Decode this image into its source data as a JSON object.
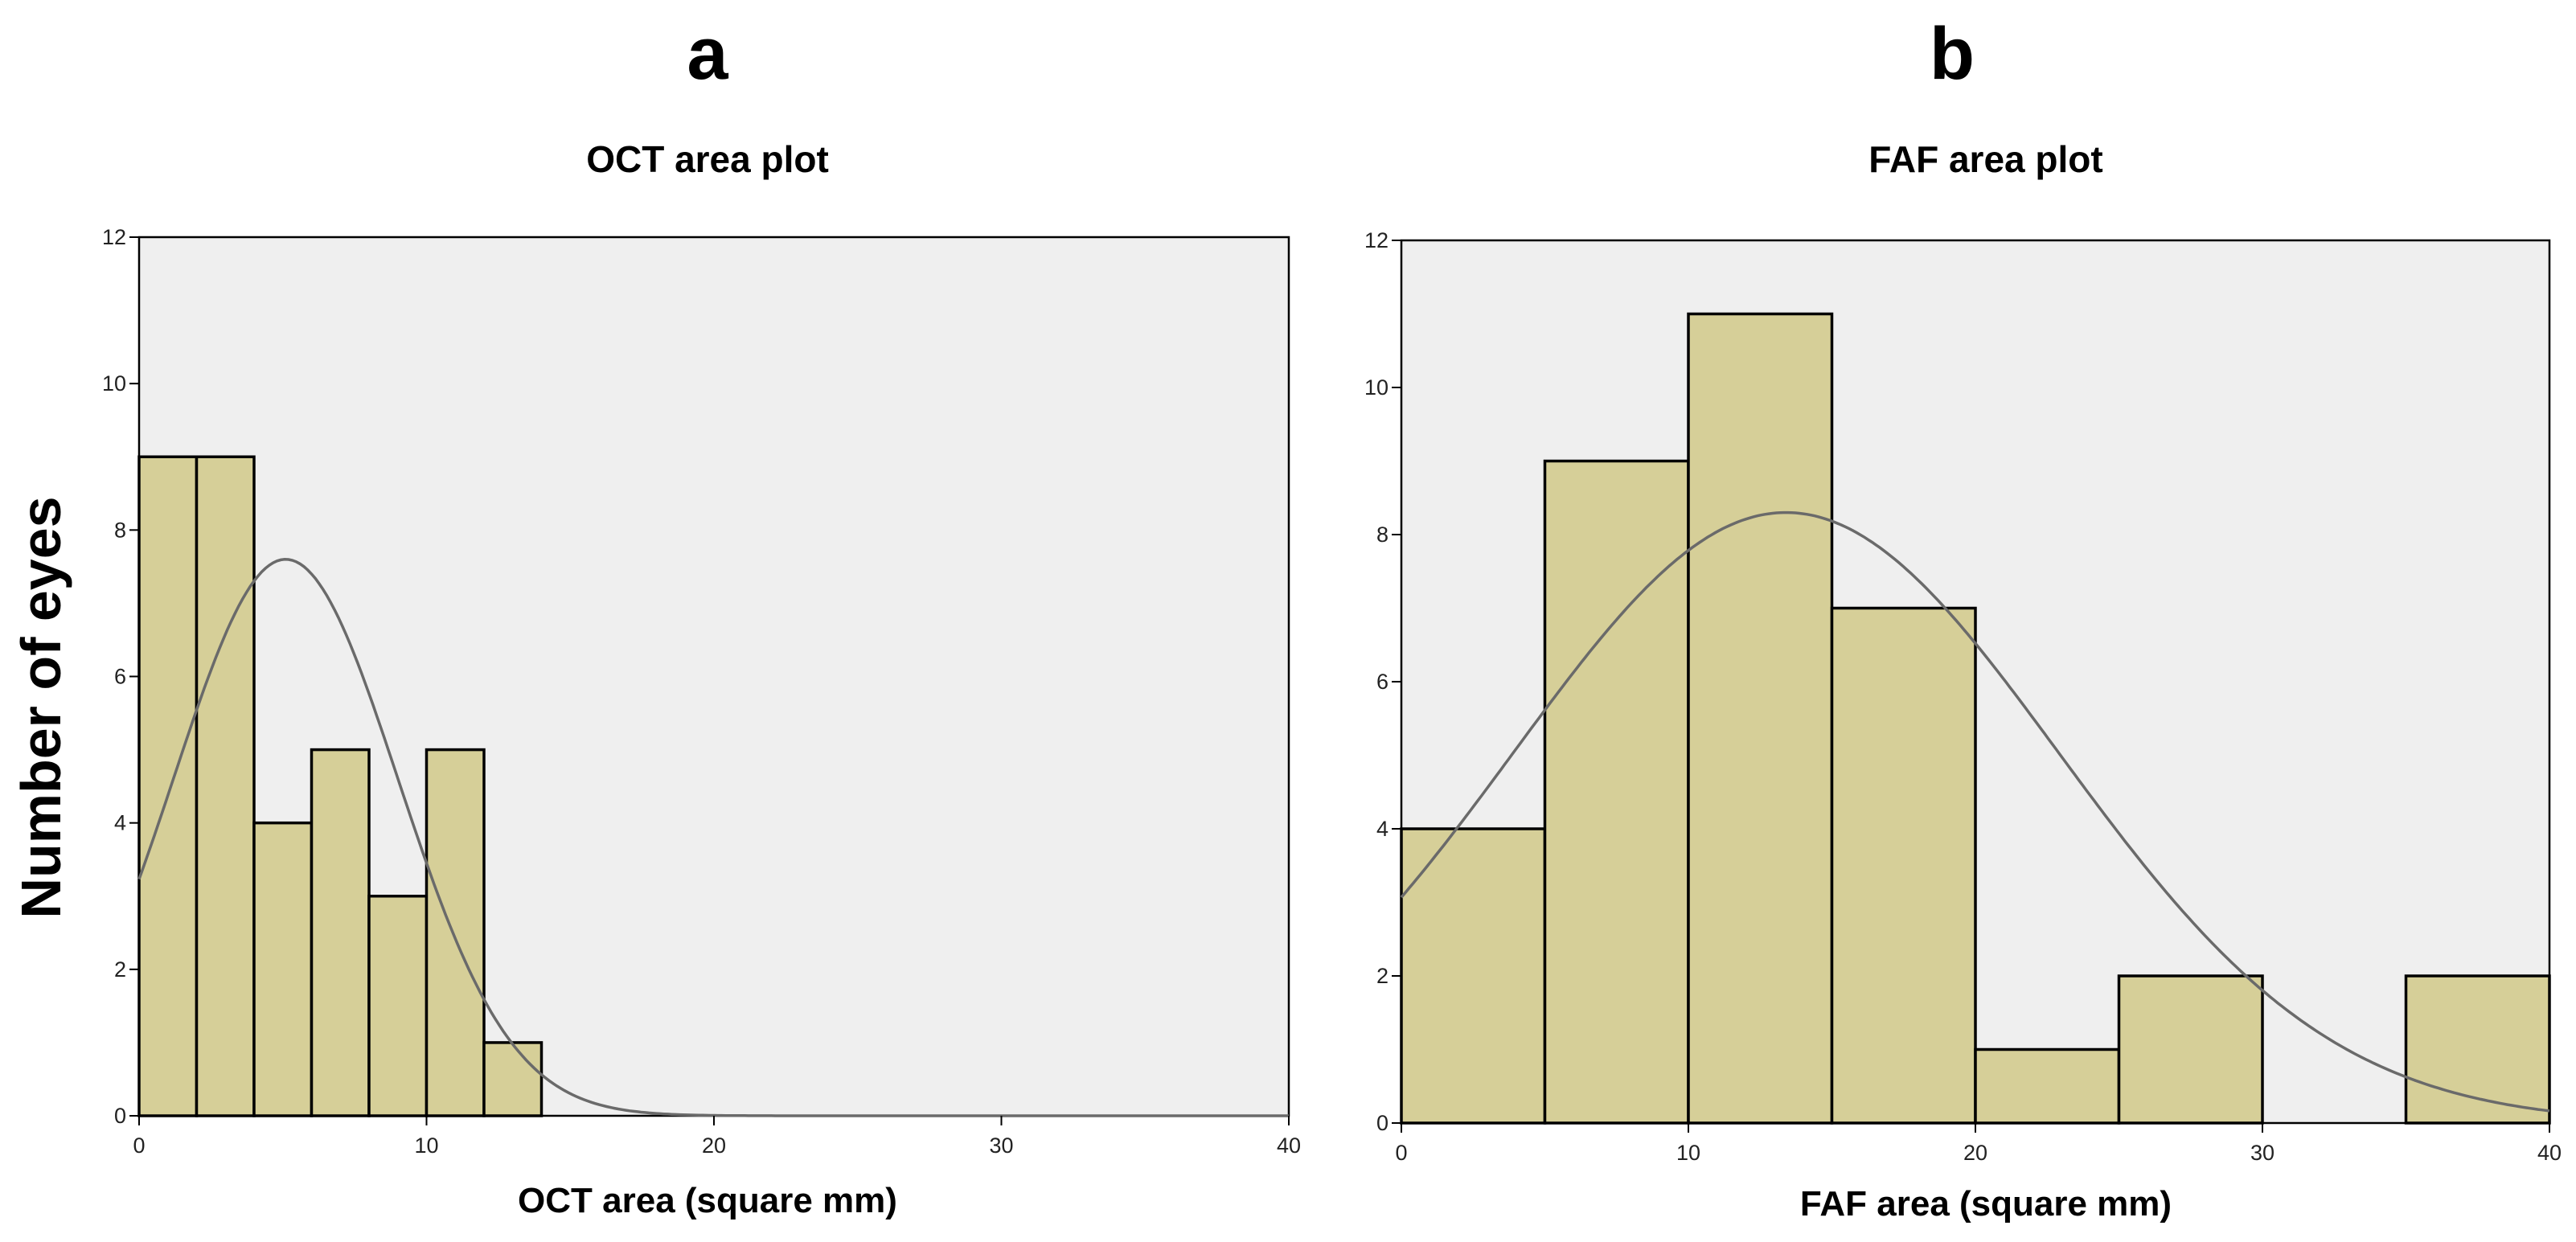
{
  "figure": {
    "ylabel": "Number of eyes"
  },
  "colors": {
    "bar_fill": "#d6cf98",
    "plot_background": "#efefef",
    "curve": "#6a6a6a"
  },
  "chart_data": [
    {
      "type": "bar",
      "panel": "a",
      "title": "OCT area plot",
      "xlabel": "OCT area (square mm)",
      "ylabel": "Number of eyes",
      "xlim": [
        0,
        40
      ],
      "ylim": [
        0,
        12
      ],
      "xticks": [
        0,
        10,
        20,
        30,
        40
      ],
      "yticks": [
        0,
        2,
        4,
        6,
        8,
        10,
        12
      ],
      "bin_width": 2,
      "bins": [
        {
          "x0": 0,
          "x1": 2,
          "count": 9
        },
        {
          "x0": 2,
          "x1": 4,
          "count": 9
        },
        {
          "x0": 4,
          "x1": 6,
          "count": 4
        },
        {
          "x0": 6,
          "x1": 8,
          "count": 5
        },
        {
          "x0": 8,
          "x1": 10,
          "count": 3
        },
        {
          "x0": 10,
          "x1": 12,
          "count": 5
        },
        {
          "x0": 12,
          "x1": 14,
          "count": 1
        }
      ],
      "normal_curve": {
        "peak_x": 5.1,
        "peak_y": 7.6,
        "sd": 3.9
      }
    },
    {
      "type": "bar",
      "panel": "b",
      "title": "FAF area plot",
      "xlabel": "FAF area (square mm)",
      "ylabel": "Number of eyes",
      "xlim": [
        0,
        40
      ],
      "ylim": [
        0,
        12
      ],
      "xticks": [
        0,
        10,
        20,
        30,
        40
      ],
      "yticks": [
        0,
        2,
        4,
        6,
        8,
        10,
        12
      ],
      "bin_width": 5,
      "bins": [
        {
          "x0": 0,
          "x1": 5,
          "count": 4
        },
        {
          "x0": 5,
          "x1": 10,
          "count": 9
        },
        {
          "x0": 10,
          "x1": 15,
          "count": 11
        },
        {
          "x0": 15,
          "x1": 20,
          "count": 7
        },
        {
          "x0": 20,
          "x1": 25,
          "count": 1
        },
        {
          "x0": 25,
          "x1": 30,
          "count": 2
        },
        {
          "x0": 30,
          "x1": 35,
          "count": 0
        },
        {
          "x0": 35,
          "x1": 40,
          "count": 2
        }
      ],
      "normal_curve": {
        "peak_x": 13.4,
        "peak_y": 8.3,
        "sd": 9.5
      }
    }
  ]
}
